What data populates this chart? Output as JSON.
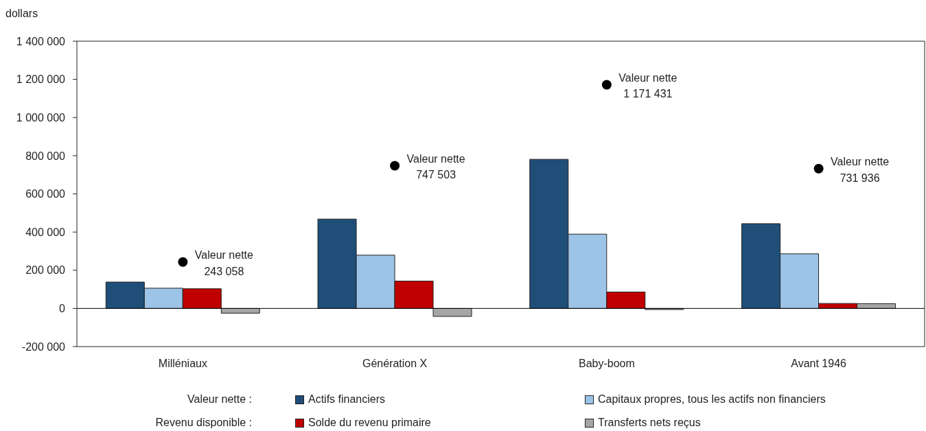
{
  "chart_data": {
    "type": "bar",
    "ylabel": "dollars",
    "categories": [
      "Milléniaux",
      "Génération X",
      "Baby-boom",
      "Avant 1946"
    ],
    "series": [
      {
        "name": "Actifs financiers",
        "color": "#1f4e79",
        "values": [
          138000,
          468000,
          781000,
          444000
        ]
      },
      {
        "name": "Capitaux propres, tous les actifs non financiers",
        "color": "#9dc3e6",
        "values": [
          106000,
          279000,
          389000,
          286000
        ]
      },
      {
        "name": "Solde du revenu primaire",
        "color": "#c00000",
        "values": [
          103000,
          143000,
          86000,
          26000
        ]
      },
      {
        "name": "Transferts nets reçus",
        "color": "#a6a6a6",
        "values": [
          -25000,
          -42000,
          -6000,
          25000
        ]
      },
      {
        "name": "Valeur nette",
        "type": "scatter",
        "color": "#000000",
        "marker": "circle",
        "values": [
          243058,
          747503,
          1171431,
          731936
        ],
        "value_labels": [
          "243 058",
          "747 503",
          "1 171 431",
          "731 936"
        ]
      }
    ],
    "ylim": [
      -200000,
      1400000
    ],
    "yticks": [
      {
        "value": -200000,
        "label": "-200 000"
      },
      0,
      {
        "value": 200000,
        "label": "200 000"
      },
      {
        "value": 400000,
        "label": "400 000"
      },
      {
        "value": 600000,
        "label": "600 000"
      },
      {
        "value": 800000,
        "label": "800 000"
      },
      {
        "value": 1000000,
        "label": "1 000 000"
      },
      {
        "value": 1200000,
        "label": "1 200 000"
      },
      {
        "value": 1400000,
        "label": "1 400 000"
      }
    ],
    "grid": false,
    "legend": "bottom",
    "annotations": [
      "Valeur nette :",
      "Revenu disponible :"
    ],
    "ref_lines": [
      {
        "axis": "y",
        "value": 0,
        "color": "#000000"
      }
    ]
  }
}
